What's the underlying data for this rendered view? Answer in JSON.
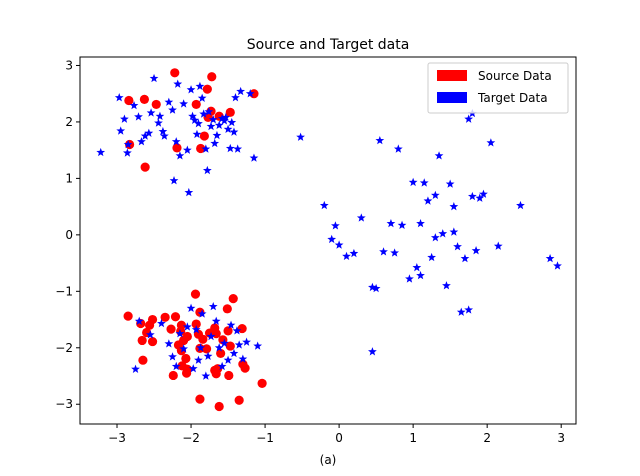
{
  "chart_data": {
    "type": "scatter",
    "title": "Source and Target data",
    "xlabel": "(a)",
    "ylabel": "",
    "xlim": [
      -3.5,
      3.2
    ],
    "ylim": [
      -3.35,
      3.15
    ],
    "xticks": [
      -3,
      -2,
      -1,
      0,
      1,
      2,
      3
    ],
    "xtick_labels": [
      "−3",
      "−2",
      "−1",
      "0",
      "1",
      "2",
      "3"
    ],
    "yticks": [
      -3,
      -2,
      -1,
      0,
      1,
      2,
      3
    ],
    "ytick_labels": [
      "−3",
      "−2",
      "−1",
      "0",
      "1",
      "2",
      "3"
    ],
    "grid": false,
    "legend_position": "top-right",
    "series": [
      {
        "name": "Source Data",
        "color": "#ff0000",
        "marker": "circle",
        "points": [
          [
            -2.84,
            2.38
          ],
          [
            -2.63,
            2.4
          ],
          [
            -2.47,
            2.31
          ],
          [
            -2.22,
            2.87
          ],
          [
            -1.72,
            2.8
          ],
          [
            -1.78,
            2.58
          ],
          [
            -1.15,
            2.5
          ],
          [
            -1.47,
            2.17
          ],
          [
            -1.62,
            2.1
          ],
          [
            -1.77,
            2.08
          ],
          [
            -1.73,
            2.19
          ],
          [
            -1.93,
            2.31
          ],
          [
            -1.82,
            1.75
          ],
          [
            -1.87,
            1.53
          ],
          [
            -2.19,
            1.54
          ],
          [
            -2.83,
            1.6
          ],
          [
            -2.62,
            1.2
          ],
          [
            -2.85,
            -1.44
          ],
          [
            -2.68,
            -1.57
          ],
          [
            -2.56,
            -1.6
          ],
          [
            -2.52,
            -1.5
          ],
          [
            -2.6,
            -1.73
          ],
          [
            -2.66,
            -1.87
          ],
          [
            -2.52,
            -1.89
          ],
          [
            -2.65,
            -2.22
          ],
          [
            -2.35,
            -1.46
          ],
          [
            -2.21,
            -1.45
          ],
          [
            -2.27,
            -1.67
          ],
          [
            -2.13,
            -1.6
          ],
          [
            -2.14,
            -1.71
          ],
          [
            -2.05,
            -1.8
          ],
          [
            -2.1,
            -1.87
          ],
          [
            -2.17,
            -1.95
          ],
          [
            -2.13,
            -2.05
          ],
          [
            -2.07,
            -2.19
          ],
          [
            -2.12,
            -2.32
          ],
          [
            -2.05,
            -2.38
          ],
          [
            -2.24,
            -2.49
          ],
          [
            -2.06,
            -2.45
          ],
          [
            -1.94,
            -1.05
          ],
          [
            -1.88,
            -1.37
          ],
          [
            -1.93,
            -1.58
          ],
          [
            -1.9,
            -1.76
          ],
          [
            -1.84,
            -1.85
          ],
          [
            -1.88,
            -2.01
          ],
          [
            -1.79,
            -2.02
          ],
          [
            -1.75,
            -1.74
          ],
          [
            -1.68,
            -1.65
          ],
          [
            -1.66,
            -1.75
          ],
          [
            -1.57,
            -1.86
          ],
          [
            -1.5,
            -1.7
          ],
          [
            -1.43,
            -1.13
          ],
          [
            -1.51,
            -1.31
          ],
          [
            -1.31,
            -1.66
          ],
          [
            -1.47,
            -1.97
          ],
          [
            -1.6,
            -2.1
          ],
          [
            -1.64,
            -2.37
          ],
          [
            -1.68,
            -2.4
          ],
          [
            -1.66,
            -2.46
          ],
          [
            -1.49,
            -2.49
          ],
          [
            -1.3,
            -2.29
          ],
          [
            -1.27,
            -2.36
          ],
          [
            -1.04,
            -2.63
          ],
          [
            -1.88,
            -2.91
          ],
          [
            -1.62,
            -3.04
          ],
          [
            -1.35,
            -2.93
          ]
        ]
      },
      {
        "name": "Target Data",
        "color": "#0000ff",
        "marker": "star",
        "points": [
          [
            -3.22,
            1.46
          ],
          [
            -2.97,
            2.43
          ],
          [
            -2.95,
            1.84
          ],
          [
            -2.9,
            2.05
          ],
          [
            -2.86,
            1.45
          ],
          [
            -2.85,
            1.6
          ],
          [
            -2.77,
            2.29
          ],
          [
            -2.71,
            2.09
          ],
          [
            -2.67,
            1.65
          ],
          [
            -2.62,
            1.75
          ],
          [
            -2.57,
            1.8
          ],
          [
            -2.54,
            2.16
          ],
          [
            -2.5,
            2.77
          ],
          [
            -2.44,
            1.98
          ],
          [
            -2.42,
            2.1
          ],
          [
            -2.38,
            1.83
          ],
          [
            -2.36,
            1.75
          ],
          [
            -2.3,
            2.35
          ],
          [
            -2.25,
            2.21
          ],
          [
            -2.23,
            0.96
          ],
          [
            -2.2,
            1.65
          ],
          [
            -2.18,
            2.67
          ],
          [
            -2.15,
            1.4
          ],
          [
            -2.1,
            2.32
          ],
          [
            -2.05,
            1.5
          ],
          [
            -2.03,
            0.75
          ],
          [
            -2.0,
            2.57
          ],
          [
            -1.98,
            2.1
          ],
          [
            -1.95,
            2.03
          ],
          [
            -1.92,
            1.78
          ],
          [
            -1.9,
            1.97
          ],
          [
            -1.88,
            2.63
          ],
          [
            -1.85,
            2.42
          ],
          [
            -1.83,
            2.14
          ],
          [
            -1.8,
            1.52
          ],
          [
            -1.78,
            1.14
          ],
          [
            -1.76,
            2.18
          ],
          [
            -1.73,
            1.92
          ],
          [
            -1.7,
            2.04
          ],
          [
            -1.68,
            1.62
          ],
          [
            -1.65,
            1.76
          ],
          [
            -1.62,
            1.94
          ],
          [
            -1.58,
            2.06
          ],
          [
            -1.55,
            2.02
          ],
          [
            -1.53,
            2.08
          ],
          [
            -1.5,
            1.87
          ],
          [
            -1.47,
            1.53
          ],
          [
            -1.45,
            1.99
          ],
          [
            -1.42,
            1.82
          ],
          [
            -1.4,
            2.43
          ],
          [
            -1.37,
            1.52
          ],
          [
            -1.33,
            2.54
          ],
          [
            -1.2,
            2.5
          ],
          [
            -1.15,
            1.36
          ],
          [
            -2.75,
            -2.38
          ],
          [
            -2.7,
            -1.53
          ],
          [
            -2.55,
            -1.77
          ],
          [
            -2.4,
            -1.57
          ],
          [
            -2.3,
            -1.93
          ],
          [
            -2.25,
            -2.16
          ],
          [
            -2.2,
            -2.33
          ],
          [
            -2.15,
            -1.75
          ],
          [
            -2.1,
            -2.02
          ],
          [
            -2.05,
            -1.63
          ],
          [
            -2.0,
            -1.3
          ],
          [
            -1.97,
            -2.37
          ],
          [
            -1.93,
            -1.68
          ],
          [
            -1.9,
            -2.22
          ],
          [
            -1.87,
            -2.0
          ],
          [
            -1.85,
            -1.4
          ],
          [
            -1.8,
            -2.5
          ],
          [
            -1.77,
            -2.15
          ],
          [
            -1.73,
            -1.8
          ],
          [
            -1.7,
            -1.27
          ],
          [
            -1.66,
            -1.53
          ],
          [
            -1.62,
            -2.0
          ],
          [
            -1.58,
            -2.33
          ],
          [
            -1.55,
            -1.92
          ],
          [
            -1.5,
            -2.22
          ],
          [
            -1.46,
            -1.6
          ],
          [
            -1.42,
            -2.1
          ],
          [
            -1.38,
            -1.7
          ],
          [
            -1.35,
            -1.95
          ],
          [
            -1.3,
            -2.2
          ],
          [
            -1.25,
            -1.9
          ],
          [
            -1.1,
            -1.97
          ],
          [
            -0.52,
            1.73
          ],
          [
            -0.2,
            0.52
          ],
          [
            -0.1,
            -0.08
          ],
          [
            -0.05,
            0.16
          ],
          [
            0.0,
            -0.18
          ],
          [
            0.1,
            -0.38
          ],
          [
            0.2,
            -0.33
          ],
          [
            0.3,
            0.3
          ],
          [
            0.45,
            -0.93
          ],
          [
            0.45,
            -2.07
          ],
          [
            0.55,
            1.67
          ],
          [
            0.7,
            0.2
          ],
          [
            0.75,
            -0.32
          ],
          [
            0.8,
            1.52
          ],
          [
            0.85,
            0.17
          ],
          [
            0.95,
            -0.78
          ],
          [
            1.0,
            0.93
          ],
          [
            1.05,
            -0.58
          ],
          [
            1.1,
            -0.72
          ],
          [
            1.15,
            0.92
          ],
          [
            1.2,
            0.6
          ],
          [
            1.25,
            -0.4
          ],
          [
            1.3,
            0.7
          ],
          [
            1.35,
            1.4
          ],
          [
            1.4,
            0.02
          ],
          [
            1.45,
            -0.9
          ],
          [
            1.5,
            0.9
          ],
          [
            1.55,
            0.5
          ],
          [
            1.6,
            -0.21
          ],
          [
            1.65,
            -1.37
          ],
          [
            1.7,
            -0.42
          ],
          [
            1.75,
            2.05
          ],
          [
            1.8,
            0.68
          ],
          [
            1.85,
            -0.28
          ],
          [
            1.9,
            0.65
          ],
          [
            1.95,
            0.72
          ],
          [
            2.05,
            1.63
          ],
          [
            2.15,
            -0.2
          ],
          [
            2.45,
            0.52
          ],
          [
            2.85,
            -0.42
          ],
          [
            2.95,
            -0.55
          ],
          [
            1.8,
            2.15
          ],
          [
            1.75,
            -1.33
          ],
          [
            1.3,
            -0.05
          ],
          [
            0.6,
            -0.3
          ],
          [
            1.1,
            0.2
          ],
          [
            0.5,
            -0.95
          ],
          [
            1.55,
            0.05
          ]
        ]
      }
    ]
  }
}
